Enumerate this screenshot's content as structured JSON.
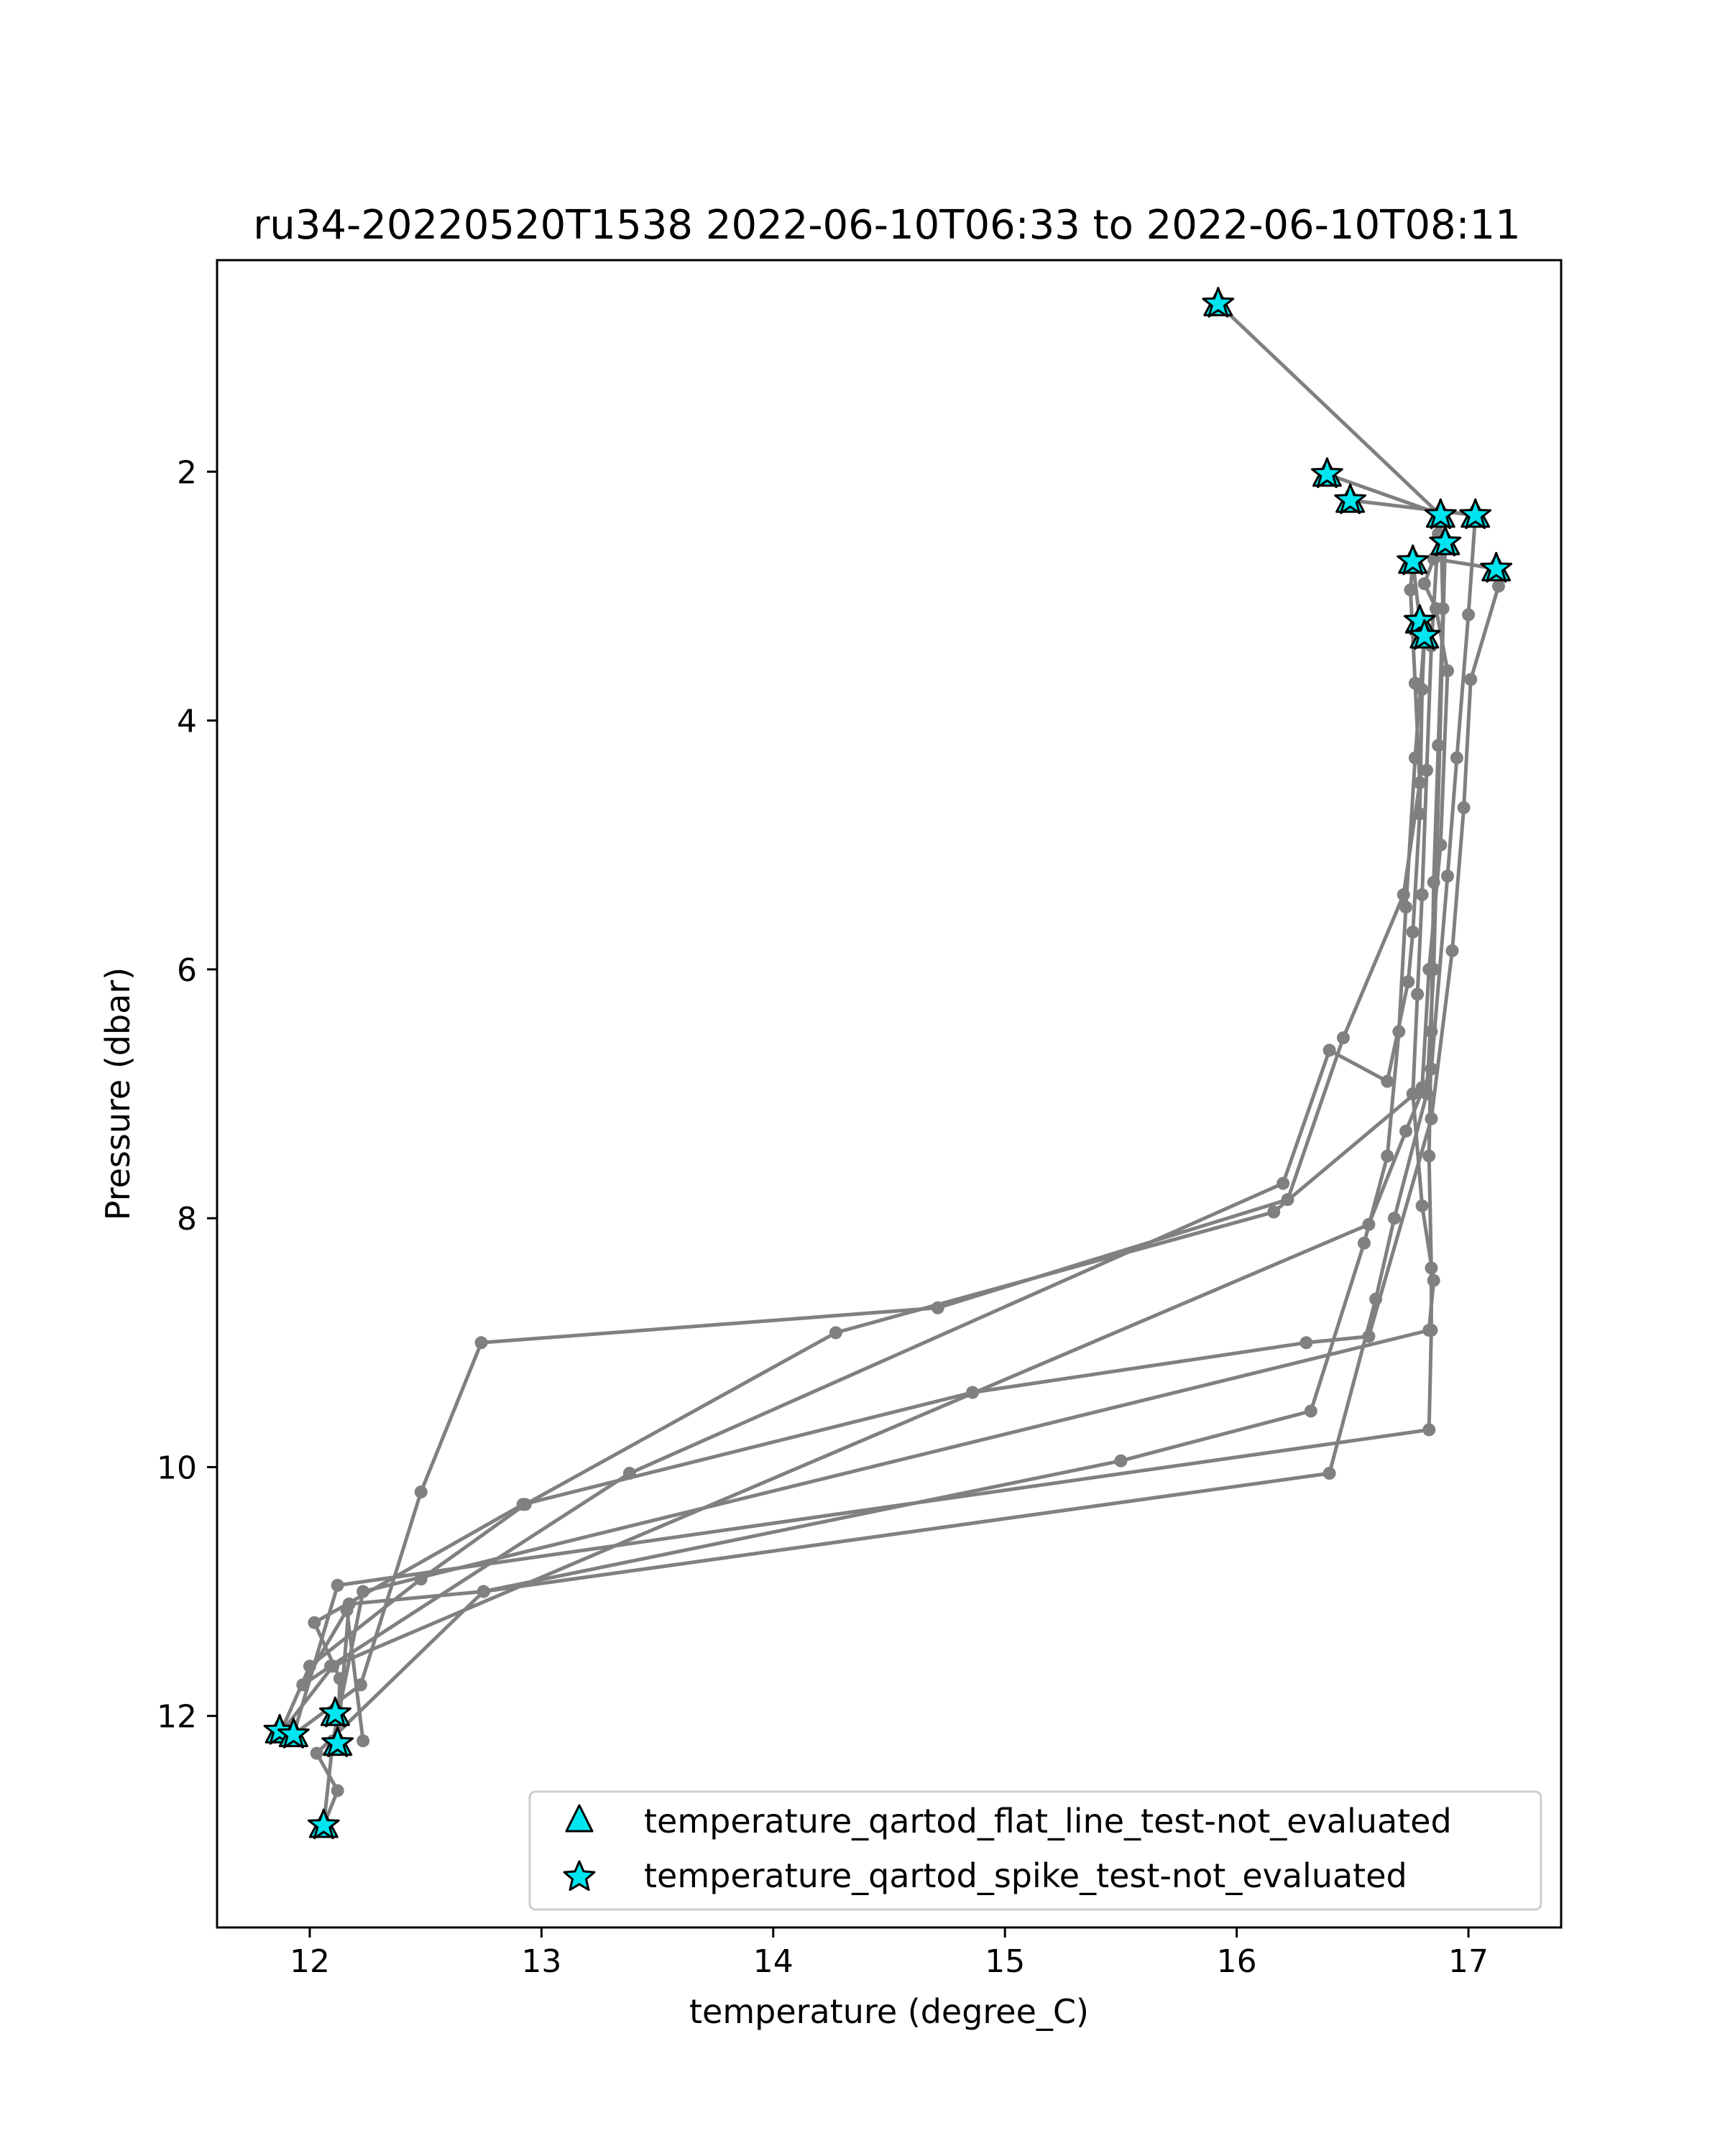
{
  "chart_data": {
    "type": "line",
    "title": "ru34-20220520T1538 2022-06-10T06:33 to 2022-06-10T08:11",
    "xlabel": "temperature (degree_C)",
    "ylabel": "Pressure (dbar)",
    "xlim": [
      11.6,
      17.4
    ],
    "ylim": [
      13.7,
      0.3
    ],
    "y_inverted": true,
    "grid": false,
    "legend_position": "lower right",
    "xticks": [
      12,
      13,
      14,
      15,
      16,
      17
    ],
    "yticks": [
      2,
      4,
      6,
      8,
      10,
      12
    ],
    "line_color": "#808080",
    "marker_color": "#00e5ef",
    "series": [
      {
        "x": [
          15.92,
          16.88,
          16.89,
          16.87,
          16.85,
          16.84,
          16.83,
          16.84,
          16.84,
          16.83,
          12.12,
          11.93
        ],
        "y": [
          0.65,
          2.35,
          3.1,
          4.2,
          5.3,
          6.5,
          7.5,
          8.4,
          8.9,
          9.7,
          10.95,
          12.15
        ]
      },
      {
        "x": [
          11.93,
          12.22,
          12.48,
          12.74,
          14.71,
          16.22,
          16.46,
          16.72,
          16.79,
          16.77,
          16.75,
          16.76,
          16.79
        ],
        "y": [
          12.15,
          11.75,
          10.2,
          9.0,
          8.72,
          7.85,
          6.55,
          5.4,
          4.5,
          3.7,
          2.95,
          2.72,
          3.2
        ]
      },
      {
        "x": [
          16.39,
          16.89,
          16.87,
          16.84,
          16.82,
          16.8,
          16.78,
          16.76,
          16.8,
          16.85,
          16.83,
          12.23,
          12.1,
          12.06
        ],
        "y": [
          2.02,
          2.35,
          2.5,
          3.4,
          4.4,
          5.4,
          6.2,
          7.0,
          7.9,
          8.5,
          8.9,
          11.0,
          12.2,
          12.88
        ]
      },
      {
        "x": [
          12.06,
          12.12,
          12.03,
          12.75,
          15.5,
          16.32,
          16.55,
          16.65,
          16.7,
          16.73,
          16.77,
          16.81
        ],
        "y": [
          12.88,
          12.6,
          12.3,
          11.0,
          9.95,
          9.55,
          8.2,
          7.5,
          6.5,
          5.5,
          4.3,
          3.32
        ]
      },
      {
        "x": [
          16.81,
          16.8,
          16.79,
          16.76,
          16.74,
          16.65,
          16.4,
          16.2,
          13.38,
          12.09,
          11.97,
          12.16,
          12.23
        ],
        "y": [
          3.32,
          3.75,
          4.75,
          5.7,
          6.1,
          6.9,
          6.65,
          7.72,
          10.05,
          11.6,
          11.75,
          11.15,
          12.2
        ]
      },
      {
        "x": [
          16.49,
          17.03,
          17.0,
          16.95,
          16.91,
          16.84,
          16.73,
          16.57,
          12.1,
          11.87
        ],
        "y": [
          2.23,
          2.35,
          3.15,
          4.3,
          5.25,
          6.8,
          7.3,
          8.05,
          11.6,
          12.15
        ]
      },
      {
        "x": [
          11.87,
          12.0,
          12.48,
          12.93,
          14.27,
          16.16,
          16.8,
          16.83,
          16.88,
          16.91,
          16.86,
          16.81,
          16.85,
          17.12
        ],
        "y": [
          12.15,
          11.6,
          10.9,
          10.3,
          8.92,
          7.95,
          6.95,
          6.0,
          5.0,
          3.6,
          3.1,
          2.9,
          2.7,
          2.78
        ]
      },
      {
        "x": [
          17.12,
          17.13,
          17.01,
          16.98,
          16.93,
          16.84,
          16.57,
          16.3,
          14.86,
          12.92,
          12.02,
          12.13,
          12.12
        ],
        "y": [
          2.78,
          2.92,
          3.67,
          4.7,
          5.85,
          7.2,
          8.95,
          9.0,
          9.4,
          10.3,
          11.25,
          11.7,
          12.22
        ]
      },
      {
        "x": [
          12.12,
          12.17,
          12.75,
          16.4,
          16.6,
          16.68,
          16.82,
          16.85,
          16.9
        ],
        "y": [
          12.22,
          11.1,
          11.0,
          10.05,
          8.65,
          8.0,
          7.0,
          6.0,
          2.57
        ]
      }
    ],
    "flat_line_flags": {
      "label": "temperature_qartod_flat_line_test-not_evaluated",
      "x": [],
      "y": []
    },
    "spike_flags": {
      "label": "temperature_qartod_spike_test-not_evaluated",
      "x": [
        15.92,
        16.39,
        16.49,
        16.88,
        17.03,
        16.9,
        16.76,
        17.12,
        16.79,
        16.81,
        12.11,
        11.87,
        11.93,
        12.12,
        12.06
      ],
      "y": [
        0.65,
        2.02,
        2.23,
        2.35,
        2.35,
        2.57,
        2.72,
        2.78,
        3.2,
        3.32,
        11.98,
        12.12,
        12.15,
        12.22,
        12.88
      ]
    }
  }
}
